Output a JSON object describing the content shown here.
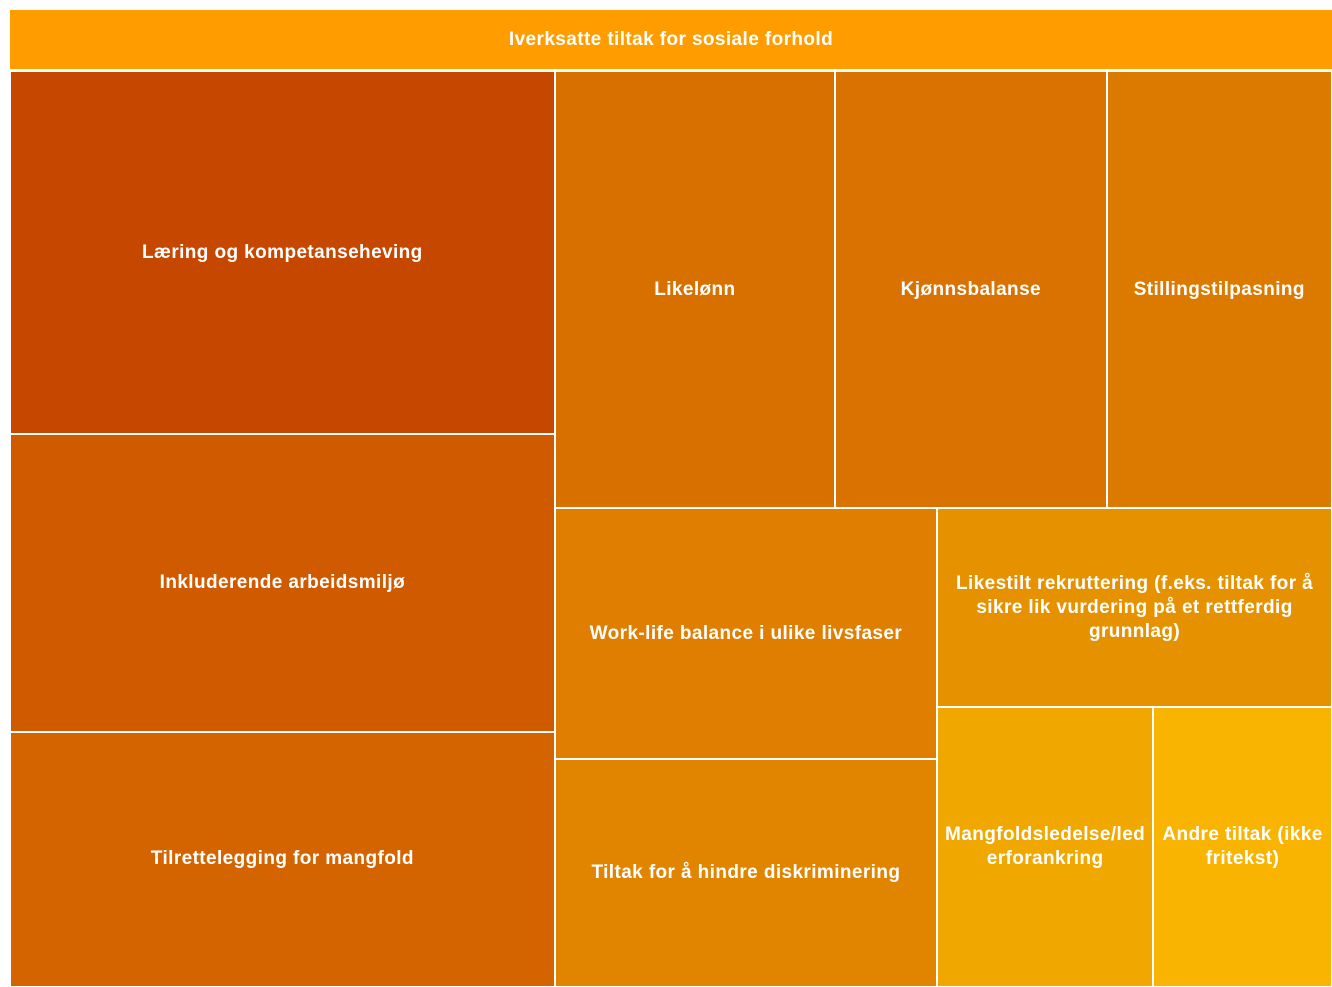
{
  "chart_data": {
    "type": "treemap",
    "title": "Iverksatte tiltak for sosiale forhold",
    "title_color": "#ff9d00",
    "categories": [
      "Læring og kompetanseheving",
      "Inkluderende arbeidsmiljø",
      "Tilrettelegging for mangfold",
      "Likelønn",
      "Kjønnsbalanse",
      "Stillingstilpasning",
      "Work-life balance i ulike livsfaser",
      "Tiltak for å hindre diskriminering",
      "Likestilt rekruttering (f.eks. tiltak for å sikre lik vurdering på et rettferdig grunnlag)",
      "Mangfoldsledelse/lederforankring",
      "Andre tiltak (ikke fritekst)"
    ],
    "values": [
      198,
      162,
      139,
      123,
      119,
      98,
      96,
      87,
      78,
      61,
      50
    ],
    "colors": [
      "#c64800",
      "#cf5a00",
      "#d46400",
      "#d87000",
      "#d97200",
      "#dc7a00",
      "#df7e00",
      "#e18400",
      "#e69200",
      "#f0a800",
      "#f8b400"
    ]
  }
}
